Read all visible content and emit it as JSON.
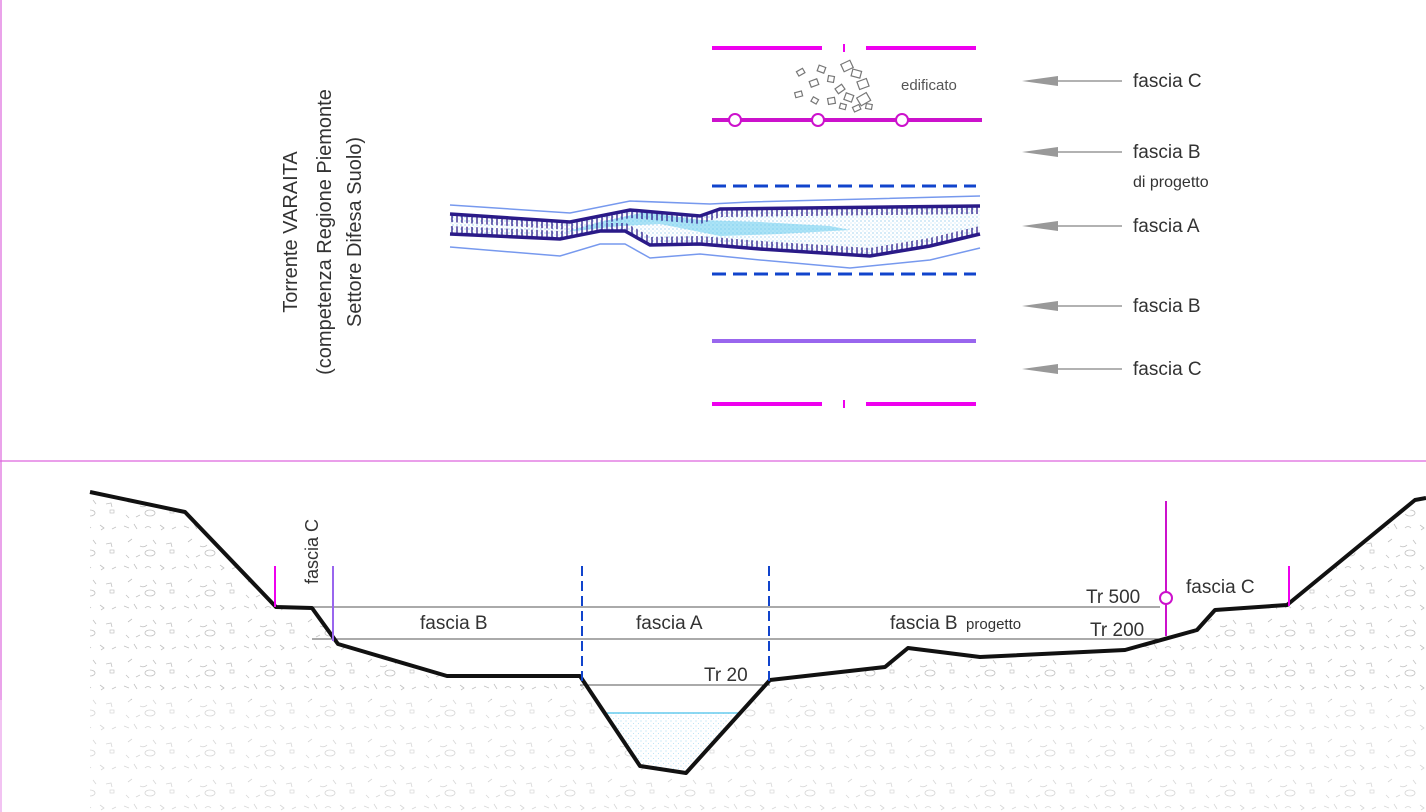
{
  "river_title": {
    "line1": "Torrente VARAITA",
    "line2": "(competenza Regione Piemonte",
    "line3": "Settore Difesa Suolo)"
  },
  "plan_view": {
    "edificato_label": "edificato",
    "bands": [
      {
        "label": "fascia C",
        "sub": ""
      },
      {
        "label": "fascia B",
        "sub": "di progetto"
      },
      {
        "label": "fascia A",
        "sub": ""
      },
      {
        "label": "fascia B",
        "sub": ""
      },
      {
        "label": "fascia C",
        "sub": ""
      }
    ]
  },
  "section_view": {
    "left_fascia_c": "fascia C",
    "fascia_b": "fascia B",
    "fascia_a": "fascia A",
    "fascia_b_progetto_main": "fascia B",
    "fascia_b_progetto_sub": "progetto",
    "right_fascia_c": "fascia C",
    "tr500": "Tr 500",
    "tr200": "Tr 200",
    "tr20": "Tr 20"
  },
  "colors": {
    "magenta": "#ee00ee",
    "violet": "#9966ee",
    "blue_dash": "#1144cc",
    "navy": "#2a1a88",
    "light_blue": "#7799ee",
    "water": "#66ccee",
    "arrow_gray": "#999999",
    "frame": "#dd66dd"
  }
}
